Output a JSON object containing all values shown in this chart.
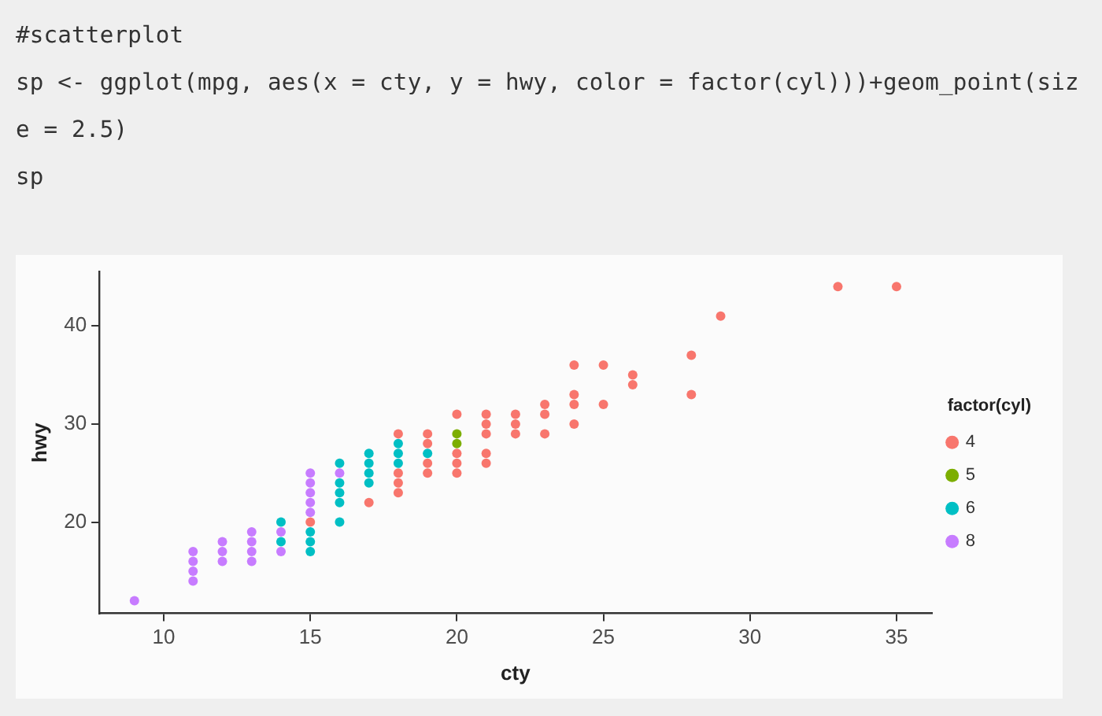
{
  "chart_data": {
    "type": "scatter",
    "annotations": [
      "#scatterplot",
      "sp <- ggplot(mpg, aes(x = cty, y = hwy, color = factor(cyl)))+geom_point(size = 2.5)",
      "sp"
    ],
    "xlabel": "cty",
    "ylabel": "hwy",
    "legend_title": "factor(cyl)",
    "legend": "right",
    "marker": "circle",
    "xlim": [
      7.8,
      36.2
    ],
    "ylim": [
      10.7,
      45.5
    ],
    "xticks": [
      10,
      15,
      20,
      25,
      30,
      35
    ],
    "yticks": [
      20,
      30,
      40
    ],
    "series": [
      {
        "name": "4",
        "color": "#f8766d",
        "x": [
          15,
          17,
          18,
          18,
          18,
          18,
          19,
          19,
          19,
          19,
          20,
          20,
          20,
          20,
          21,
          21,
          21,
          21,
          21,
          22,
          22,
          22,
          23,
          23,
          23,
          24,
          24,
          24,
          24,
          25,
          25,
          26,
          26,
          28,
          28,
          29,
          33,
          35
        ],
        "values": [
          20,
          22,
          29,
          25,
          24,
          23,
          29,
          28,
          26,
          25,
          31,
          27,
          26,
          25,
          31,
          30,
          29,
          27,
          26,
          31,
          30,
          29,
          32,
          31,
          29,
          36,
          33,
          32,
          30,
          36,
          32,
          35,
          34,
          37,
          33,
          41,
          44,
          44
        ]
      },
      {
        "name": "5",
        "color": "#7cae00",
        "x": [
          20,
          20
        ],
        "values": [
          29,
          28
        ]
      },
      {
        "name": "6",
        "color": "#00bfc4",
        "x": [
          14,
          14,
          15,
          15,
          15,
          16,
          16,
          16,
          16,
          16,
          17,
          17,
          17,
          17,
          18,
          18,
          18,
          19
        ],
        "values": [
          20,
          18,
          19,
          18,
          17,
          26,
          24,
          23,
          22,
          20,
          27,
          26,
          25,
          24,
          28,
          27,
          26,
          27
        ]
      },
      {
        "name": "8",
        "color": "#c77cff",
        "x": [
          9,
          11,
          11,
          11,
          11,
          12,
          12,
          12,
          13,
          13,
          13,
          13,
          14,
          14,
          15,
          15,
          15,
          15,
          15,
          16
        ],
        "values": [
          12,
          17,
          16,
          15,
          14,
          18,
          17,
          16,
          19,
          18,
          17,
          16,
          19,
          17,
          25,
          24,
          23,
          22,
          21,
          25
        ]
      }
    ]
  }
}
